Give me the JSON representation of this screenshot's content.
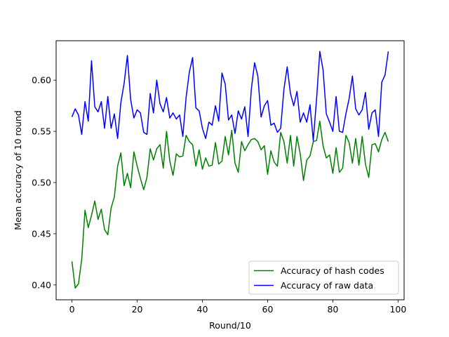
{
  "chart_data": {
    "type": "line",
    "title": "",
    "xlabel": "Round/10",
    "ylabel": "Mean accuracy of 10 round",
    "xlim": [
      -4.85,
      101.85
    ],
    "ylim": [
      0.3855,
      0.6385
    ],
    "xticks": [
      0,
      20,
      40,
      60,
      80,
      100
    ],
    "yticks": [
      0.4,
      0.45,
      0.5,
      0.55,
      0.6
    ],
    "xtick_labels": [
      "0",
      "20",
      "40",
      "60",
      "80",
      "100"
    ],
    "ytick_labels": [
      "0.40",
      "0.45",
      "0.50",
      "0.55",
      "0.60"
    ],
    "grid": false,
    "legend_position": "lower-right",
    "series": [
      {
        "name": "Accuracy of hash codes",
        "color": "#008000",
        "x": [
          0,
          1,
          2,
          3,
          4,
          5,
          6,
          7,
          8,
          9,
          10,
          11,
          12,
          13,
          14,
          15,
          16,
          17,
          18,
          19,
          20,
          21,
          22,
          23,
          24,
          25,
          26,
          27,
          28,
          29,
          30,
          31,
          32,
          33,
          34,
          35,
          36,
          37,
          38,
          39,
          40,
          41,
          42,
          43,
          44,
          45,
          46,
          47,
          48,
          49,
          50,
          51,
          52,
          53,
          54,
          55,
          56,
          57,
          58,
          59,
          60,
          61,
          62,
          63,
          64,
          65,
          66,
          67,
          68,
          69,
          70,
          71,
          72,
          73,
          74,
          75,
          76,
          77,
          78,
          79,
          80,
          81,
          82,
          83,
          84,
          85,
          86,
          87,
          88,
          89,
          90,
          91,
          92,
          93,
          94,
          95,
          96,
          97
        ],
        "y": [
          0.423,
          0.397,
          0.401,
          0.425,
          0.473,
          0.456,
          0.468,
          0.482,
          0.464,
          0.474,
          0.454,
          0.449,
          0.475,
          0.486,
          0.516,
          0.529,
          0.497,
          0.509,
          0.495,
          0.53,
          0.516,
          0.504,
          0.493,
          0.505,
          0.533,
          0.522,
          0.533,
          0.537,
          0.514,
          0.55,
          0.521,
          0.507,
          0.528,
          0.525,
          0.526,
          0.546,
          0.54,
          0.537,
          0.516,
          0.532,
          0.513,
          0.524,
          0.516,
          0.517,
          0.539,
          0.518,
          0.521,
          0.545,
          0.527,
          0.551,
          0.519,
          0.51,
          0.54,
          0.531,
          0.537,
          0.542,
          0.543,
          0.54,
          0.532,
          0.536,
          0.508,
          0.531,
          0.52,
          0.516,
          0.549,
          0.54,
          0.519,
          0.546,
          0.516,
          0.545,
          0.528,
          0.502,
          0.522,
          0.526,
          0.54,
          0.541,
          0.56,
          0.536,
          0.524,
          0.527,
          0.509,
          0.534,
          0.51,
          0.514,
          0.546,
          0.539,
          0.519,
          0.543,
          0.517,
          0.545,
          0.518,
          0.505,
          0.537,
          0.538,
          0.53,
          0.542,
          0.549,
          0.54
        ]
      },
      {
        "name": "Accuracy of raw data",
        "color": "#0000ff",
        "x": [
          0,
          1,
          2,
          3,
          4,
          5,
          6,
          7,
          8,
          9,
          10,
          11,
          12,
          13,
          14,
          15,
          16,
          17,
          18,
          19,
          20,
          21,
          22,
          23,
          24,
          25,
          26,
          27,
          28,
          29,
          30,
          31,
          32,
          33,
          34,
          35,
          36,
          37,
          38,
          39,
          40,
          41,
          42,
          43,
          44,
          45,
          46,
          47,
          48,
          49,
          50,
          51,
          52,
          53,
          54,
          55,
          56,
          57,
          58,
          59,
          60,
          61,
          62,
          63,
          64,
          65,
          66,
          67,
          68,
          69,
          70,
          71,
          72,
          73,
          74,
          75,
          76,
          77,
          78,
          79,
          80,
          81,
          82,
          83,
          84,
          85,
          86,
          87,
          88,
          89,
          90,
          91,
          92,
          93,
          94,
          95,
          96,
          97
        ],
        "y": [
          0.564,
          0.572,
          0.566,
          0.547,
          0.579,
          0.56,
          0.619,
          0.574,
          0.569,
          0.579,
          0.553,
          0.584,
          0.553,
          0.567,
          0.543,
          0.578,
          0.597,
          0.624,
          0.581,
          0.563,
          0.571,
          0.568,
          0.549,
          0.547,
          0.587,
          0.568,
          0.6,
          0.577,
          0.569,
          0.583,
          0.563,
          0.568,
          0.562,
          0.566,
          0.545,
          0.583,
          0.608,
          0.622,
          0.573,
          0.57,
          0.553,
          0.543,
          0.559,
          0.556,
          0.575,
          0.56,
          0.607,
          0.596,
          0.561,
          0.566,
          0.548,
          0.57,
          0.562,
          0.574,
          0.545,
          0.591,
          0.617,
          0.604,
          0.564,
          0.575,
          0.58,
          0.556,
          0.558,
          0.549,
          0.553,
          0.591,
          0.613,
          0.587,
          0.575,
          0.589,
          0.559,
          0.568,
          0.559,
          0.576,
          0.541,
          0.581,
          0.628,
          0.61,
          0.567,
          0.559,
          0.55,
          0.584,
          0.55,
          0.549,
          0.567,
          0.582,
          0.604,
          0.572,
          0.566,
          0.571,
          0.588,
          0.552,
          0.568,
          0.571,
          0.545,
          0.598,
          0.605,
          0.628
        ]
      }
    ]
  }
}
